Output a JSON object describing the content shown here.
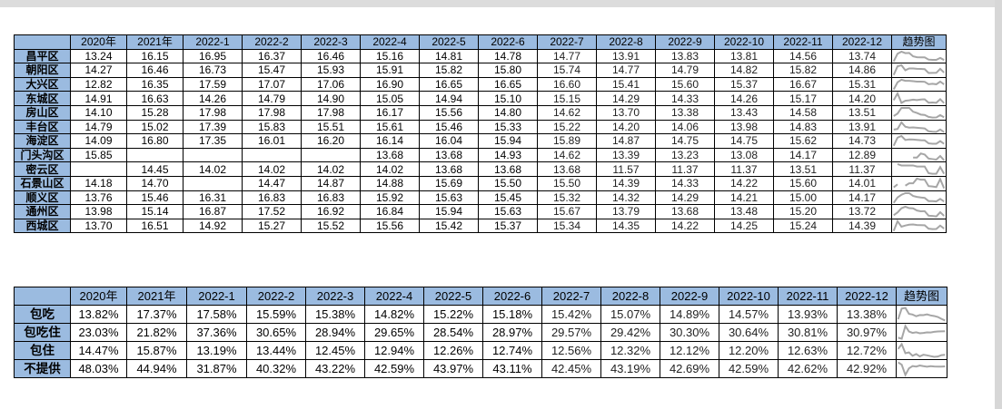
{
  "district_table": {
    "columns": [
      "",
      "2020年",
      "2021年",
      "2022-1",
      "2022-2",
      "2022-3",
      "2022-4",
      "2022-5",
      "2022-6",
      "2022-7",
      "2022-8",
      "2022-9",
      "2022-10",
      "2022-11",
      "2022-12",
      "趋势图"
    ],
    "rows": [
      {
        "name": "昌平区",
        "values": [
          "13.24",
          "16.15",
          "16.95",
          "16.37",
          "16.46",
          "15.16",
          "14.81",
          "14.78",
          "14.77",
          "13.91",
          "13.83",
          "13.81",
          "14.56",
          "13.74"
        ]
      },
      {
        "name": "朝阳区",
        "values": [
          "14.27",
          "16.46",
          "16.73",
          "15.47",
          "15.93",
          "15.91",
          "15.82",
          "15.80",
          "15.74",
          "14.77",
          "14.79",
          "14.82",
          "15.82",
          "14.86"
        ]
      },
      {
        "name": "大兴区",
        "values": [
          "12.82",
          "16.35",
          "17.59",
          "17.07",
          "17.06",
          "16.90",
          "16.65",
          "16.65",
          "16.60",
          "15.41",
          "15.60",
          "15.37",
          "16.67",
          "15.31"
        ]
      },
      {
        "name": "东城区",
        "values": [
          "14.91",
          "16.63",
          "14.26",
          "14.79",
          "14.90",
          "15.05",
          "14.94",
          "15.10",
          "15.15",
          "14.29",
          "14.33",
          "14.26",
          "15.17",
          "14.20"
        ]
      },
      {
        "name": "房山区",
        "values": [
          "14.10",
          "15.28",
          "17.98",
          "17.98",
          "17.98",
          "16.17",
          "15.56",
          "14.80",
          "14.62",
          "13.70",
          "13.38",
          "13.43",
          "14.58",
          "13.51"
        ]
      },
      {
        "name": "丰台区",
        "values": [
          "14.79",
          "15.02",
          "17.39",
          "15.83",
          "15.51",
          "15.61",
          "15.46",
          "15.33",
          "15.22",
          "14.20",
          "14.06",
          "13.98",
          "14.83",
          "13.91"
        ]
      },
      {
        "name": "海淀区",
        "values": [
          "14.09",
          "16.80",
          "17.35",
          "16.01",
          "16.20",
          "16.14",
          "16.04",
          "15.94",
          "15.89",
          "14.87",
          "14.75",
          "14.75",
          "15.62",
          "14.73"
        ]
      },
      {
        "name": "门头沟区",
        "values": [
          "15.85",
          "",
          "",
          "",
          "",
          "13.68",
          "13.68",
          "14.93",
          "14.62",
          "13.39",
          "13.23",
          "13.08",
          "14.17",
          "12.89"
        ]
      },
      {
        "name": "密云区",
        "values": [
          "",
          "14.45",
          "14.02",
          "14.02",
          "14.02",
          "14.02",
          "13.68",
          "13.68",
          "13.68",
          "11.57",
          "11.37",
          "11.37",
          "13.51",
          "11.37"
        ]
      },
      {
        "name": "石景山区",
        "values": [
          "14.18",
          "14.70",
          "",
          "14.47",
          "14.87",
          "14.88",
          "15.69",
          "15.50",
          "15.50",
          "14.39",
          "14.33",
          "14.22",
          "15.60",
          "14.01"
        ]
      },
      {
        "name": "顺义区",
        "values": [
          "13.76",
          "15.46",
          "16.31",
          "16.83",
          "16.83",
          "15.92",
          "15.63",
          "15.45",
          "15.32",
          "14.32",
          "14.29",
          "14.21",
          "15.00",
          "14.17"
        ]
      },
      {
        "name": "通州区",
        "values": [
          "13.98",
          "15.14",
          "16.87",
          "17.52",
          "16.92",
          "16.84",
          "15.94",
          "15.63",
          "15.67",
          "13.79",
          "13.68",
          "13.48",
          "15.20",
          "13.72"
        ]
      },
      {
        "name": "西城区",
        "values": [
          "13.70",
          "16.51",
          "14.92",
          "15.27",
          "15.52",
          "15.56",
          "15.42",
          "15.37",
          "15.34",
          "14.35",
          "14.22",
          "14.25",
          "15.24",
          "14.39"
        ]
      }
    ]
  },
  "meal_table": {
    "columns": [
      "",
      "2020年",
      "2021年",
      "2022-1",
      "2022-2",
      "2022-3",
      "2022-4",
      "2022-5",
      "2022-6",
      "2022-7",
      "2022-8",
      "2022-9",
      "2022-10",
      "2022-11",
      "2022-12",
      "趋势图"
    ],
    "rows": [
      {
        "name": "包吃",
        "values": [
          "13.82%",
          "17.37%",
          "17.58%",
          "15.59%",
          "15.38%",
          "14.82%",
          "15.22%",
          "15.18%",
          "15.42%",
          "15.07%",
          "14.89%",
          "14.57%",
          "13.93%",
          "13.38%"
        ]
      },
      {
        "name": "包吃住",
        "values": [
          "23.03%",
          "21.82%",
          "37.36%",
          "30.65%",
          "28.94%",
          "29.65%",
          "28.54%",
          "28.97%",
          "29.57%",
          "29.42%",
          "30.30%",
          "30.64%",
          "30.81%",
          "30.97%"
        ]
      },
      {
        "name": "包住",
        "values": [
          "14.47%",
          "15.87%",
          "13.19%",
          "13.44%",
          "12.45%",
          "12.94%",
          "12.26%",
          "12.74%",
          "12.56%",
          "12.32%",
          "12.12%",
          "12.20%",
          "12.63%",
          "12.72%"
        ]
      },
      {
        "name": "不提供",
        "values": [
          "48.03%",
          "44.94%",
          "31.87%",
          "40.32%",
          "43.22%",
          "42.59%",
          "43.97%",
          "43.11%",
          "42.45%",
          "43.19%",
          "42.69%",
          "42.59%",
          "42.62%",
          "42.92%"
        ]
      }
    ]
  },
  "colors": {
    "header_fill": "#9bbbe0",
    "sparkline": "#a6a6a6",
    "border": "#000000"
  }
}
